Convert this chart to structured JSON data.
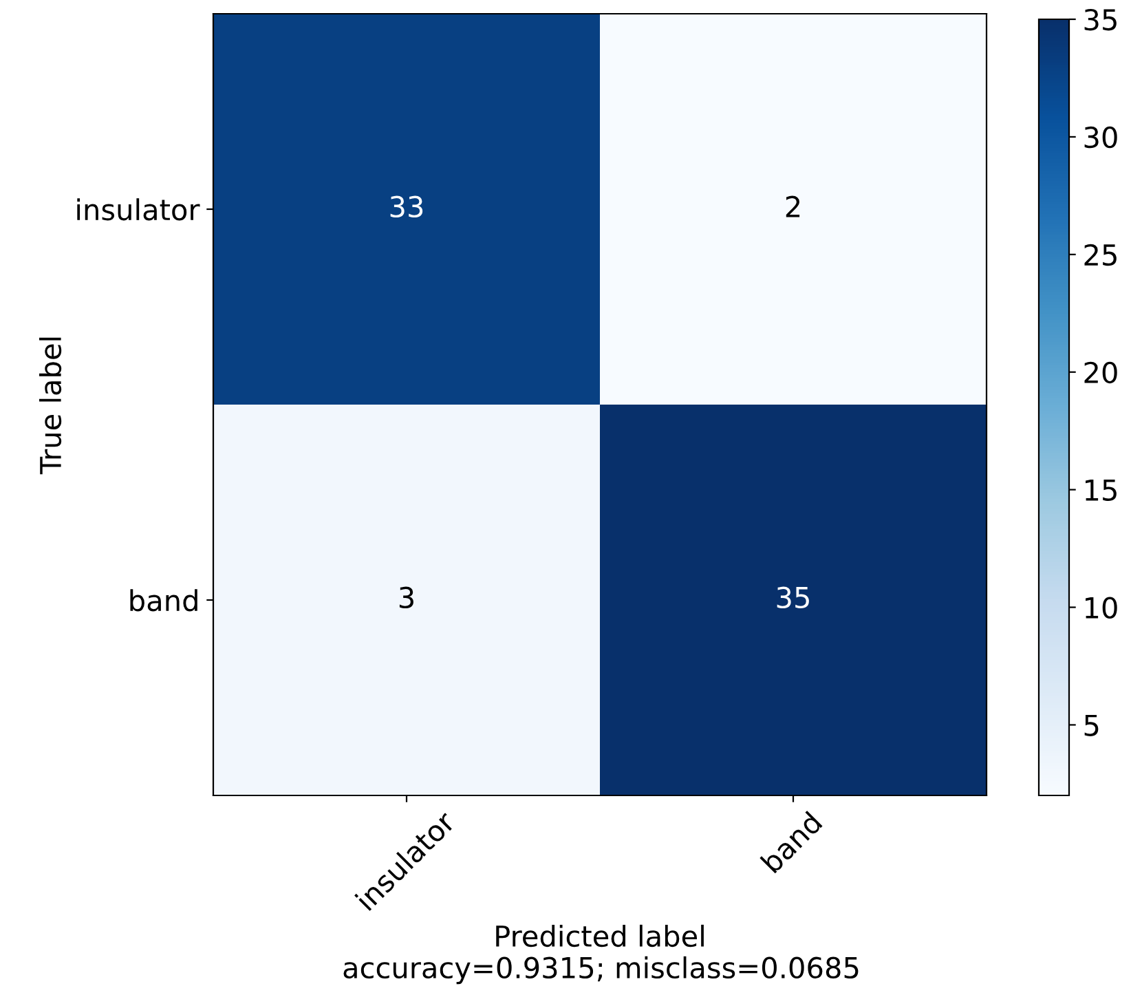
{
  "chart_data": {
    "type": "heatmap",
    "categories": [
      "insulator",
      "band"
    ],
    "y_categories": [
      "insulator",
      "band"
    ],
    "cells": [
      [
        33,
        2
      ],
      [
        3,
        35
      ]
    ],
    "data_labels": true,
    "xlabel": "Predicted label",
    "ylabel": "True label",
    "annotations": [
      "accuracy=0.9315; misclass=0.0685"
    ],
    "clim": [
      2,
      35
    ],
    "cticks": [
      5,
      10,
      15,
      20,
      25,
      30,
      35
    ],
    "grid": false
  }
}
